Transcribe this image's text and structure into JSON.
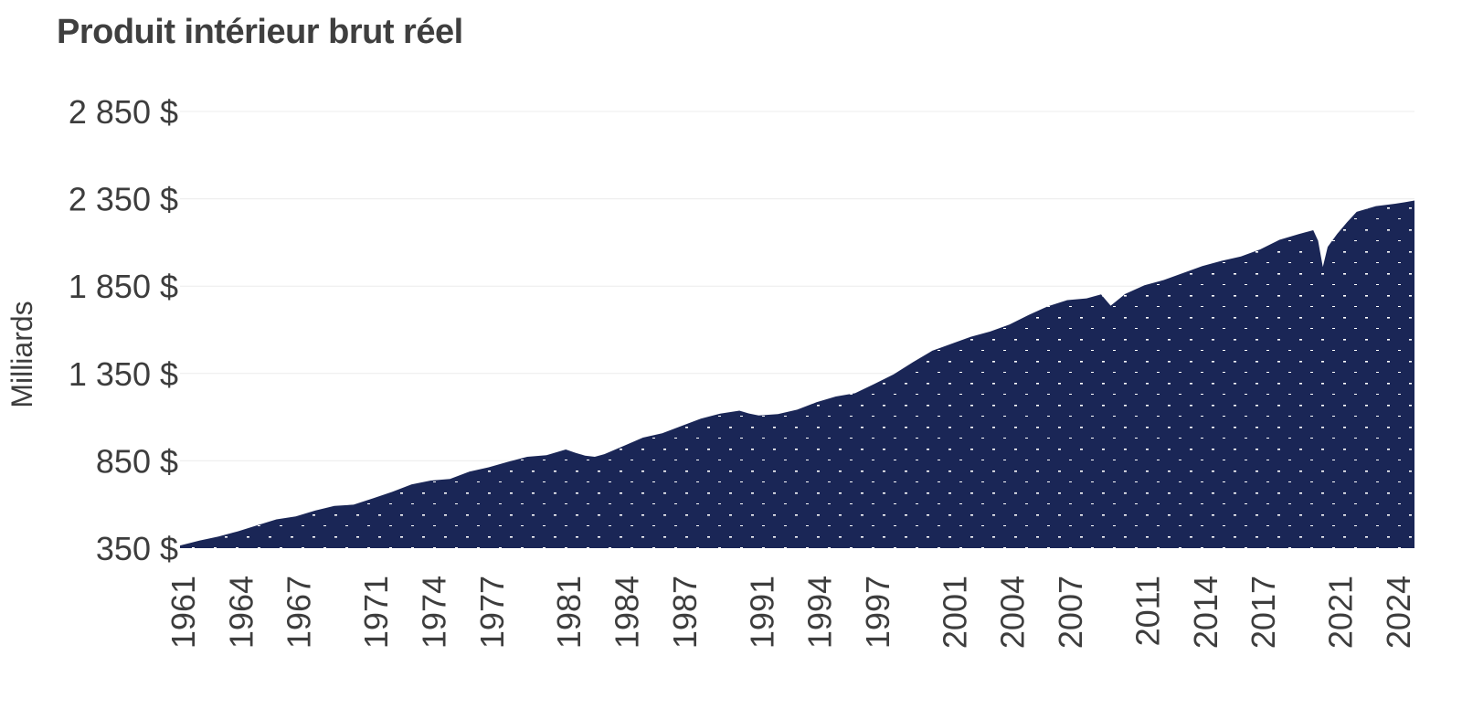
{
  "chart_data": {
    "type": "area",
    "title": "Produit intérieur brut réel",
    "ylabel": "Milliards",
    "xlabel": "",
    "ylim": [
      350,
      2850
    ],
    "xlim": [
      1961.0,
      2025.0
    ],
    "grid": true,
    "legend": "none",
    "colors": {
      "fill": "#1a2656",
      "dots": "#ffffff",
      "grid": "#ececec",
      "text": "#3d3d3d"
    },
    "y_ticks": [
      350,
      850,
      1350,
      1850,
      2350,
      2850
    ],
    "y_tick_labels": [
      "350 $",
      "850 $",
      "1 350 $",
      "1 850 $",
      "2 350 $",
      "2 850 $"
    ],
    "x_ticks": [
      1961,
      1964,
      1967,
      1971,
      1974,
      1977,
      1981,
      1984,
      1987,
      1991,
      1994,
      1997,
      2001,
      2004,
      2007,
      2011,
      2014,
      2017,
      2021,
      2024
    ],
    "x_tick_labels": [
      "1961",
      "1964",
      "1967",
      "1971",
      "1974",
      "1977",
      "1981",
      "1984",
      "1987",
      "1991",
      "1994",
      "1997",
      "2001",
      "2004",
      "2007",
      "2011",
      "2014",
      "2017",
      "2021",
      "2024"
    ],
    "series": [
      {
        "x": [
          1961.0,
          1962.0,
          1963.0,
          1964.0,
          1965.0,
          1966.0,
          1967.0,
          1968.0,
          1969.0,
          1970.0,
          1971.0,
          1972.0,
          1973.0,
          1974.0,
          1975.0,
          1976.0,
          1977.0,
          1978.0,
          1979.0,
          1980.0,
          1981.0,
          1981.5,
          1982.0,
          1982.5,
          1983.0,
          1984.0,
          1985.0,
          1986.0,
          1987.0,
          1988.0,
          1989.0,
          1990.0,
          1990.5,
          1991.0,
          1992.0,
          1993.0,
          1994.0,
          1995.0,
          1996.0,
          1997.0,
          1998.0,
          1999.0,
          2000.0,
          2001.0,
          2002.0,
          2003.0,
          2004.0,
          2005.0,
          2006.0,
          2007.0,
          2008.0,
          2008.75,
          2009.25,
          2010.0,
          2011.0,
          2012.0,
          2013.0,
          2014.0,
          2015.0,
          2016.0,
          2017.0,
          2018.0,
          2019.0,
          2019.75,
          2020.0,
          2020.25,
          2020.5,
          2021.0,
          2021.5,
          2022.0,
          2023.0,
          2024.0,
          2024.5,
          2025.0
        ],
        "values": [
          365,
          393,
          417,
          446,
          481,
          515,
          532,
          565,
          592,
          599,
          635,
          672,
          715,
          737,
          746,
          788,
          813,
          844,
          873,
          882,
          915,
          896,
          880,
          873,
          888,
          935,
          983,
          1008,
          1050,
          1091,
          1120,
          1137,
          1121,
          1110,
          1118,
          1143,
          1185,
          1218,
          1237,
          1290,
          1345,
          1415,
          1480,
          1520,
          1560,
          1590,
          1630,
          1685,
          1735,
          1770,
          1780,
          1803,
          1738,
          1805,
          1855,
          1885,
          1925,
          1965,
          1995,
          2020,
          2060,
          2115,
          2148,
          2170,
          2110,
          1960,
          2075,
          2150,
          2215,
          2275,
          2308,
          2322,
          2330,
          2340
        ]
      }
    ]
  }
}
